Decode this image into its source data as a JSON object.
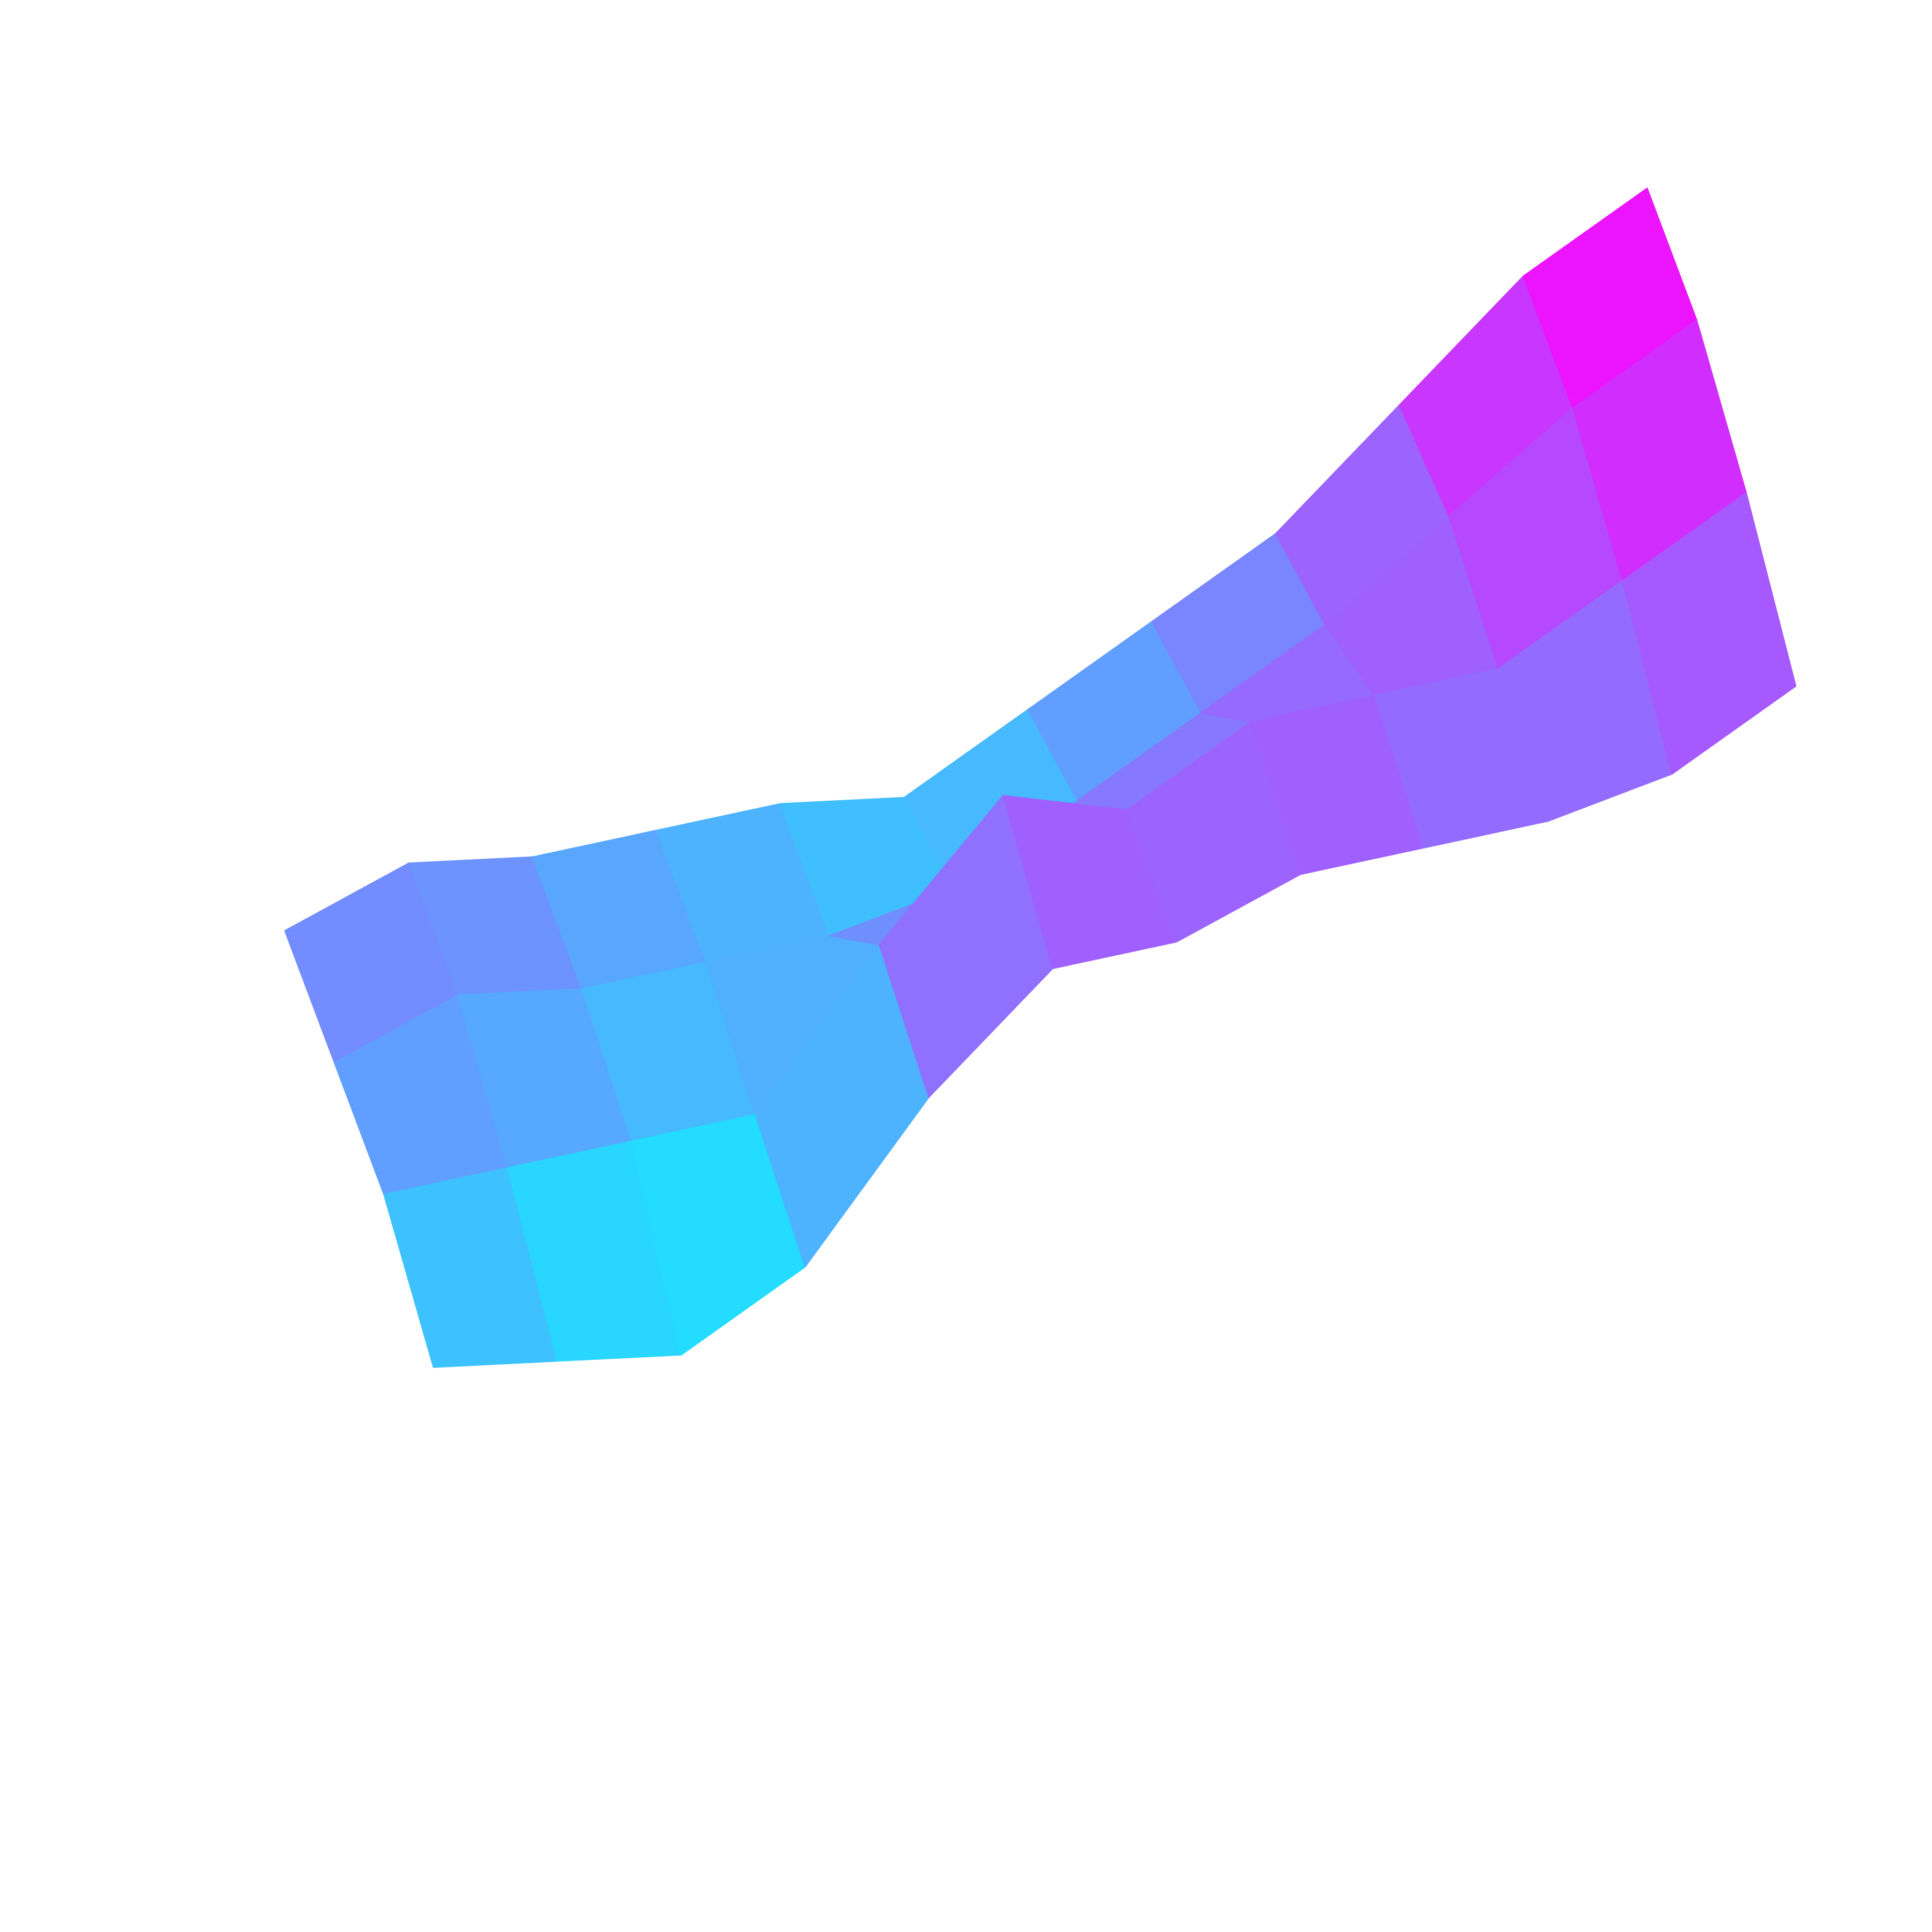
{
  "chart_data": {
    "type": "surface",
    "colormap": "cool",
    "zlim": [
      0,
      1
    ],
    "z": [
      [
        0.45,
        0.5,
        0.4,
        0.35,
        0.3,
        0.2,
        0.3,
        0.4,
        0.5,
        0.7,
        0.9,
        1.0
      ],
      [
        0.4,
        0.45,
        0.35,
        0.3,
        0.25,
        0.25,
        0.35,
        0.45,
        0.55,
        0.7,
        0.85,
        0.95
      ],
      [
        0.35,
        0.3,
        0.25,
        0.2,
        0.5,
        0.75,
        0.6,
        0.7,
        0.65,
        0.6,
        0.7,
        0.8
      ],
      [
        0.2,
        0.1,
        0.0,
        0.1,
        0.4,
        0.6,
        0.55,
        0.6,
        0.55,
        0.5,
        0.5,
        0.6
      ]
    ]
  }
}
